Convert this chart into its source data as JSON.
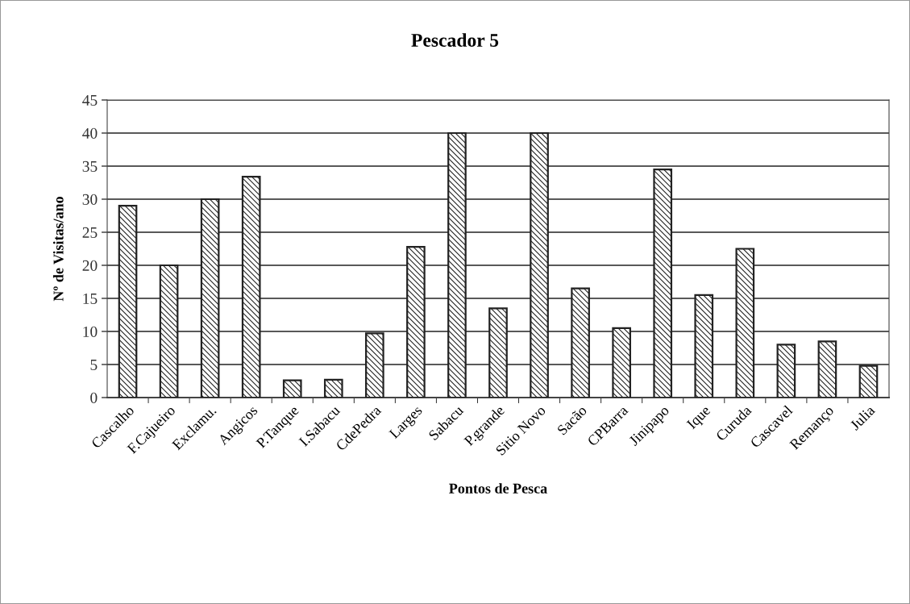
{
  "chart_data": {
    "type": "bar",
    "title": "Pescador 5",
    "xlabel": "Pontos de Pesca",
    "ylabel": "Nº de Visitas/ano",
    "categories": [
      "Cascalho",
      "F.Cajueiro",
      "Exclamu.",
      "Angicos",
      "P.Tanque",
      "I.Sabacu",
      "CdePedra",
      "Larges",
      "Sabacu",
      "P.grande",
      "Sitio Novo",
      "Sacão",
      "CPBarra",
      "Jinipapo",
      "Ique",
      "Curuda",
      "Cascavel",
      "Remanço",
      "Julia"
    ],
    "values": [
      29,
      20,
      30,
      33.4,
      2.6,
      2.7,
      9.7,
      22.8,
      40,
      13.5,
      40,
      16.5,
      10.5,
      34.5,
      15.5,
      22.5,
      8,
      8.5,
      4.8
    ],
    "color": "#222222",
    "ylim": [
      0,
      45
    ],
    "yticks": [
      0,
      5,
      10,
      15,
      20,
      25,
      30,
      35,
      40,
      45
    ],
    "grid": "y",
    "legend": false
  }
}
